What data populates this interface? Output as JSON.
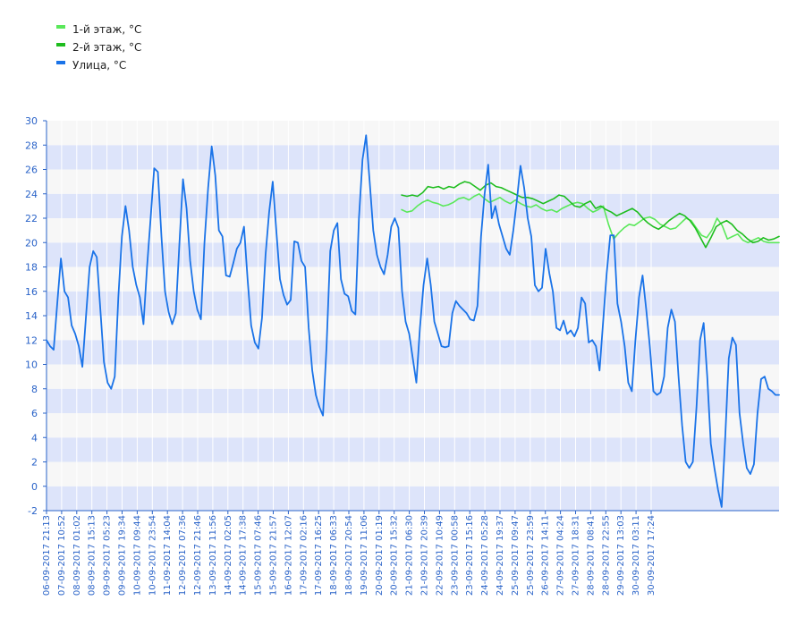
{
  "chart_data": {
    "type": "line",
    "ylim": [
      -2,
      30
    ],
    "yticks": [
      -2,
      0,
      2,
      4,
      6,
      8,
      10,
      12,
      14,
      16,
      18,
      20,
      22,
      24,
      26,
      28,
      30
    ],
    "grid": true,
    "legend_position": "top-left",
    "colors": {
      "floor1": "#5ae85a",
      "floor2": "#1ebd1e",
      "street": "#1a73e8",
      "band_light": "#dde4fa",
      "band_white": "#f7f7f7",
      "tick_text": "#2a63c8"
    },
    "x_labels": [
      "06-09-2017 21:13",
      "07-09-2017 10:52",
      "08-09-2017 01:02",
      "08-09-2017 15:13",
      "09-09-2017 05:23",
      "09-09-2017 19:34",
      "10-09-2017 09:44",
      "10-09-2017 23:54",
      "11-09-2017 14:04",
      "12-09-2017 07:36",
      "12-09-2017 21:46",
      "13-09-2017 11:56",
      "14-09-2017 02:05",
      "14-09-2017 17:38",
      "15-09-2017 07:46",
      "15-09-2017 21:57",
      "16-09-2017 12:07",
      "17-09-2017 02:16",
      "17-09-2017 16:25",
      "18-09-2017 06:33",
      "18-09-2017 20:54",
      "19-09-2017 11:06",
      "20-09-2017 01:19",
      "20-09-2017 15:32",
      "21-09-2017 06:30",
      "21-09-2017 20:39",
      "22-09-2017 10:49",
      "23-09-2017 00:58",
      "23-09-2017 15:16",
      "24-09-2017 05:28",
      "24-09-2017 19:37",
      "25-09-2017 09:47",
      "25-09-2017 23:59",
      "26-09-2017 14:11",
      "27-09-2017 04:24",
      "27-09-2017 18:31",
      "28-09-2017 08:41",
      "28-09-2017 22:55",
      "29-09-2017 13:03",
      "30-09-2017 03:11",
      "30-09-2017 17:24"
    ],
    "series": [
      {
        "name": "1-й этаж, °C",
        "key": "floor1",
        "start_label_index": 23.5,
        "values": [
          22.7,
          22.5,
          22.6,
          23.0,
          23.3,
          23.5,
          23.3,
          23.2,
          23.0,
          23.1,
          23.3,
          23.6,
          23.7,
          23.5,
          23.8,
          24.0,
          23.6,
          23.3,
          23.5,
          23.7,
          23.4,
          23.2,
          23.5,
          23.2,
          23.0,
          22.9,
          23.1,
          22.8,
          22.6,
          22.7,
          22.5,
          22.8,
          23.0,
          23.2,
          23.3,
          23.2,
          22.8,
          22.5,
          22.7,
          23.0,
          21.5,
          20.3,
          20.8,
          21.2,
          21.5,
          21.4,
          21.7,
          22.0,
          22.1,
          21.9,
          21.5,
          21.3,
          21.1,
          21.2,
          21.6,
          22.0,
          21.8,
          21.2,
          20.6,
          20.4,
          21.0,
          22.0,
          21.4,
          20.3,
          20.5,
          20.7,
          20.2,
          20.0,
          20.2,
          20.4,
          20.1,
          20.0,
          20.0,
          20.0
        ]
      },
      {
        "name": "2-й этаж, °C",
        "key": "floor2",
        "start_label_index": 23.5,
        "values": [
          23.9,
          23.8,
          23.9,
          23.8,
          24.1,
          24.6,
          24.5,
          24.6,
          24.4,
          24.6,
          24.5,
          24.8,
          25.0,
          24.9,
          24.6,
          24.3,
          24.7,
          24.9,
          24.6,
          24.5,
          24.3,
          24.1,
          23.9,
          23.7,
          23.7,
          23.6,
          23.4,
          23.2,
          23.4,
          23.6,
          23.9,
          23.8,
          23.4,
          23.0,
          22.9,
          23.2,
          23.4,
          22.8,
          23.0,
          22.7,
          22.5,
          22.2,
          22.4,
          22.6,
          22.8,
          22.5,
          22.0,
          21.6,
          21.3,
          21.1,
          21.4,
          21.8,
          22.1,
          22.4,
          22.2,
          21.8,
          21.2,
          20.4,
          19.6,
          20.4,
          21.3,
          21.6,
          21.8,
          21.5,
          21.0,
          20.7,
          20.3,
          20.0,
          20.1,
          20.4,
          20.2,
          20.3,
          20.5
        ]
      },
      {
        "name": "Улица, °C",
        "key": "street",
        "start_label_index": 0,
        "values": [
          12.0,
          11.5,
          11.2,
          15.0,
          18.7,
          16.0,
          15.5,
          13.2,
          12.5,
          11.5,
          9.8,
          14.0,
          18.0,
          19.3,
          18.8,
          14.5,
          10.2,
          8.5,
          8.0,
          9.0,
          15.5,
          20.5,
          23.0,
          21.0,
          18.0,
          16.5,
          15.5,
          13.3,
          18.0,
          22.0,
          26.1,
          25.8,
          20.5,
          16.0,
          14.3,
          13.3,
          14.2,
          19.8,
          25.2,
          22.8,
          18.5,
          16.0,
          14.5,
          13.7,
          20.0,
          24.5,
          27.9,
          25.5,
          21.0,
          20.5,
          17.3,
          17.2,
          18.3,
          19.5,
          20.0,
          21.3,
          17.0,
          13.2,
          11.8,
          11.3,
          13.8,
          19.0,
          22.5,
          25.0,
          21.0,
          17.0,
          15.7,
          14.9,
          15.3,
          20.1,
          20.0,
          18.5,
          18.0,
          13.0,
          9.5,
          7.5,
          6.5,
          5.8,
          11.5,
          19.3,
          21.0,
          21.6,
          17.0,
          15.8,
          15.6,
          14.4,
          14.1,
          22.0,
          26.8,
          28.8,
          25.0,
          21.0,
          19.0,
          18.0,
          17.4,
          19.0,
          21.3,
          22.0,
          21.2,
          16.0,
          13.5,
          12.5,
          10.5,
          8.5,
          13.0,
          16.5,
          18.7,
          16.5,
          13.5,
          12.5,
          11.5,
          11.4,
          11.5,
          14.2,
          15.2,
          14.8,
          14.5,
          14.2,
          13.7,
          13.6,
          14.8,
          20.5,
          24.0,
          26.4,
          22.0,
          23.0,
          21.5,
          20.5,
          19.5,
          19.0,
          21.0,
          23.5,
          26.3,
          24.5,
          22.0,
          20.5,
          16.5,
          16.0,
          16.3,
          19.5,
          17.5,
          16.0,
          13.0,
          12.8,
          13.6,
          12.5,
          12.8,
          12.3,
          13.0,
          15.5,
          15.0,
          11.8,
          12.0,
          11.5,
          9.5,
          13.5,
          17.5,
          20.6,
          20.6,
          15.0,
          13.5,
          11.5,
          8.5,
          7.8,
          12.0,
          15.5,
          17.3,
          14.5,
          11.5,
          7.8,
          7.5,
          7.7,
          9.0,
          13.0,
          14.5,
          13.5,
          9.0,
          5.0,
          2.0,
          1.5,
          2.0,
          6.5,
          12.0,
          13.4,
          9.0,
          3.5,
          1.5,
          -0.3,
          -1.7,
          4.0,
          10.5,
          12.2,
          11.6,
          6.0,
          3.5,
          1.5,
          1.0,
          1.8,
          6.0,
          8.8,
          9.0,
          8.0,
          7.8,
          7.5,
          7.5
        ]
      }
    ]
  }
}
